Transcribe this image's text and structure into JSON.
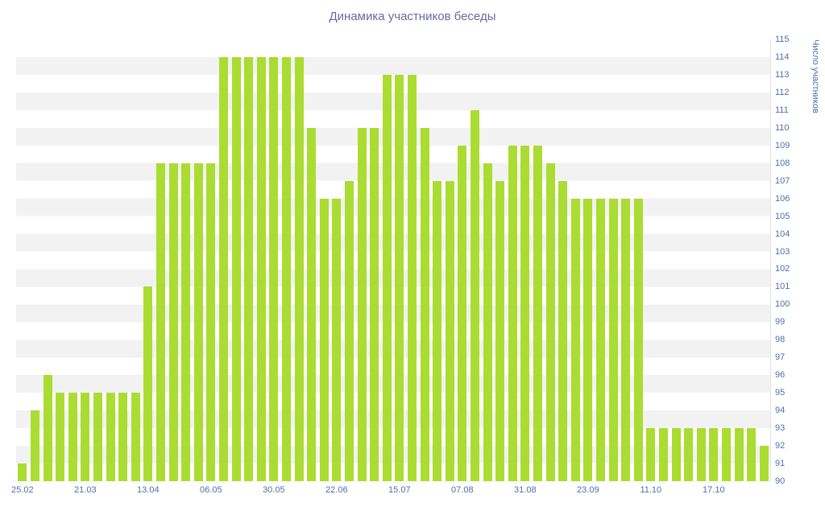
{
  "chart_data": {
    "type": "bar",
    "title": "Динамика участников беседы",
    "xlabel": "",
    "ylabel": "Число участников",
    "ylim": [
      90,
      115
    ],
    "grid": "striped-horizontal-bands",
    "legend": "none",
    "bar_color": "#aadc32",
    "stripe_color": "#f2f2f2",
    "title_color": "#6a6b9c",
    "axis_label_color": "#4a72a8",
    "y_ticks": [
      90,
      91,
      92,
      93,
      94,
      95,
      96,
      97,
      98,
      99,
      100,
      101,
      102,
      103,
      104,
      105,
      106,
      107,
      108,
      109,
      110,
      111,
      112,
      113,
      114,
      115
    ],
    "x_tick_labels": [
      "25.02",
      "21.03",
      "13.04",
      "06.05",
      "30.05",
      "22.06",
      "15.07",
      "07.08",
      "31.08",
      "23.09",
      "11.10",
      "17.10"
    ],
    "x_tick_indices": [
      0,
      5,
      10,
      15,
      20,
      25,
      30,
      35,
      40,
      45,
      50,
      55
    ],
    "values": [
      91,
      94,
      96,
      95,
      95,
      95,
      95,
      95,
      95,
      95,
      101,
      108,
      108,
      108,
      108,
      108,
      114,
      114,
      114,
      114,
      114,
      114,
      114,
      110,
      106,
      106,
      107,
      110,
      110,
      113,
      113,
      113,
      110,
      107,
      107,
      109,
      111,
      108,
      107,
      109,
      109,
      109,
      108,
      107,
      106,
      106,
      106,
      106,
      106,
      106,
      93,
      93,
      93,
      93,
      93,
      93,
      93,
      93,
      93,
      92
    ]
  }
}
